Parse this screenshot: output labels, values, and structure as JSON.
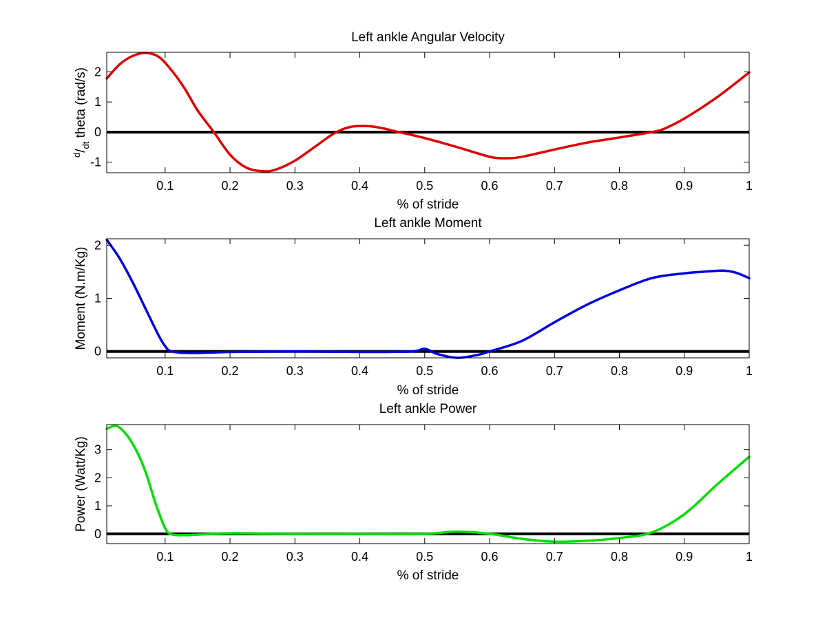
{
  "chart_data": [
    {
      "type": "line",
      "title": "Left ankle Angular Velocity",
      "xlabel": "% of stride",
      "ylabel_parts": {
        "d": "d",
        "slash": "/",
        "dt": "dt",
        "rest": " theta (rad/s)"
      },
      "xlim": [
        0.01,
        1
      ],
      "ylim": [
        -1.35,
        2.65
      ],
      "xticks": [
        0.1,
        0.2,
        0.3,
        0.4,
        0.5,
        0.6,
        0.7,
        0.8,
        0.9,
        1
      ],
      "xtick_labels": [
        "0.1",
        "0.2",
        "0.3",
        "0.4",
        "0.5",
        "0.6",
        "0.7",
        "0.8",
        "0.9",
        "1"
      ],
      "yticks": [
        -1,
        0,
        1,
        2
      ],
      "ytick_labels": [
        "-1",
        "0",
        "1",
        "2"
      ],
      "zero_line": true,
      "grid": false,
      "series": [
        {
          "color": "#e00000",
          "x": [
            0.01,
            0.03,
            0.05,
            0.07,
            0.09,
            0.11,
            0.13,
            0.15,
            0.175,
            0.2,
            0.225,
            0.25,
            0.27,
            0.3,
            0.33,
            0.36,
            0.385,
            0.41,
            0.43,
            0.46,
            0.5,
            0.55,
            0.6,
            0.625,
            0.65,
            0.7,
            0.75,
            0.8,
            0.85,
            0.87,
            0.9,
            0.95,
            1.0
          ],
          "values": [
            1.78,
            2.25,
            2.53,
            2.63,
            2.5,
            2.05,
            1.45,
            0.72,
            0.0,
            -0.75,
            -1.18,
            -1.3,
            -1.25,
            -0.95,
            -0.5,
            -0.05,
            0.17,
            0.2,
            0.15,
            0.0,
            -0.2,
            -0.5,
            -0.82,
            -0.87,
            -0.82,
            -0.58,
            -0.35,
            -0.18,
            0.0,
            0.12,
            0.45,
            1.15,
            1.98
          ]
        }
      ]
    },
    {
      "type": "line",
      "title": "Left ankle Moment",
      "xlabel": "% of stride",
      "ylabel": "Moment (N.m/Kg)",
      "xlim": [
        0.01,
        1
      ],
      "ylim": [
        -0.12,
        2.12
      ],
      "xticks": [
        0.1,
        0.2,
        0.3,
        0.4,
        0.5,
        0.6,
        0.7,
        0.8,
        0.9,
        1
      ],
      "xtick_labels": [
        "0.1",
        "0.2",
        "0.3",
        "0.4",
        "0.5",
        "0.6",
        "0.7",
        "0.8",
        "0.9",
        "1"
      ],
      "yticks": [
        0,
        1,
        2
      ],
      "ytick_labels": [
        "0",
        "1",
        "2"
      ],
      "zero_line": true,
      "grid": false,
      "series": [
        {
          "color": "#0000e0",
          "x": [
            0.01,
            0.03,
            0.05,
            0.07,
            0.09,
            0.1,
            0.11,
            0.14,
            0.2,
            0.3,
            0.4,
            0.48,
            0.5,
            0.52,
            0.55,
            0.58,
            0.6,
            0.65,
            0.7,
            0.75,
            0.8,
            0.85,
            0.9,
            0.93,
            0.96,
            0.98,
            1.0
          ],
          "values": [
            2.1,
            1.75,
            1.3,
            0.8,
            0.3,
            0.1,
            0.0,
            -0.03,
            -0.01,
            0.0,
            -0.01,
            0.0,
            0.05,
            -0.05,
            -0.12,
            -0.07,
            0.0,
            0.2,
            0.55,
            0.88,
            1.15,
            1.38,
            1.47,
            1.5,
            1.52,
            1.48,
            1.38
          ]
        }
      ]
    },
    {
      "type": "line",
      "title": "Left ankle Power",
      "xlabel": "% of stride",
      "ylabel": "Power (Watt/Kg)",
      "xlim": [
        0.01,
        1
      ],
      "ylim": [
        -0.35,
        3.9
      ],
      "xticks": [
        0.1,
        0.2,
        0.3,
        0.4,
        0.5,
        0.6,
        0.7,
        0.8,
        0.9,
        1
      ],
      "xtick_labels": [
        "0.1",
        "0.2",
        "0.3",
        "0.4",
        "0.5",
        "0.6",
        "0.7",
        "0.8",
        "0.9",
        "1"
      ],
      "yticks": [
        0,
        1,
        2,
        3
      ],
      "ytick_labels": [
        "0",
        "1",
        "2",
        "3"
      ],
      "zero_line": true,
      "grid": false,
      "series": [
        {
          "color": "#00e000",
          "x": [
            0.01,
            0.025,
            0.04,
            0.055,
            0.07,
            0.085,
            0.1,
            0.11,
            0.13,
            0.15,
            0.2,
            0.3,
            0.4,
            0.5,
            0.55,
            0.6,
            0.65,
            0.7,
            0.75,
            0.8,
            0.85,
            0.9,
            0.95,
            1.0
          ],
          "values": [
            3.75,
            3.85,
            3.55,
            3.0,
            2.2,
            1.1,
            0.2,
            -0.02,
            -0.05,
            -0.03,
            0.02,
            0.0,
            0.0,
            0.0,
            0.08,
            0.0,
            -0.18,
            -0.28,
            -0.25,
            -0.15,
            0.05,
            0.7,
            1.75,
            2.75
          ]
        }
      ]
    }
  ]
}
